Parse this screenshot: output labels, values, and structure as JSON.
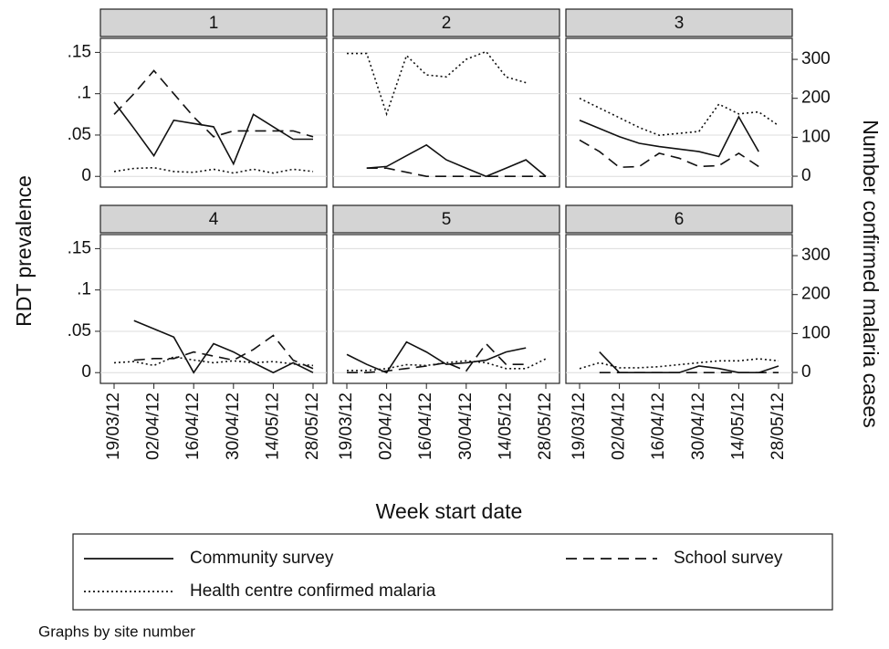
{
  "chart_data": {
    "type": "line",
    "ylabel": "RDT prevalence",
    "y2label": "Number confirmed malaria cases",
    "xlabel": "Week start date",
    "note": "Graphs by site number",
    "categories": [
      "19/03/12",
      null,
      "02/04/12",
      null,
      "16/04/12",
      null,
      "30/04/12",
      null,
      "14/05/12",
      null,
      "28/05/12"
    ],
    "ylim": [
      -0.013,
      0.167
    ],
    "yticks": [
      0,
      {
        "value": 0.05,
        "label": ".05"
      },
      {
        "value": 0.1,
        "label": ".1"
      },
      {
        "value": 0.15,
        "label": ".15"
      }
    ],
    "y2lim": [
      -28,
      354
    ],
    "y2ticks": [
      0,
      100,
      200,
      300
    ],
    "grid": true,
    "series": [
      {
        "name": "Community survey",
        "color": "#111111",
        "style": "solid",
        "axis": "y"
      },
      {
        "name": "School survey",
        "color": "#111111",
        "style": "dashed",
        "axis": "y"
      },
      {
        "name": "Health centre confirmed malaria",
        "color": "#111111",
        "style": "dotted",
        "axis": "y2"
      }
    ],
    "panels": [
      {
        "title": "1",
        "values": [
          [
            0.09,
            0.058,
            0.025,
            0.068,
            0.064,
            0.06,
            0.015,
            0.075,
            0.06,
            0.045,
            0.045
          ],
          [
            0.075,
            0.1,
            0.128,
            0.1,
            0.072,
            0.048,
            0.055,
            0.055,
            0.055,
            0.055,
            0.048
          ],
          [
            12,
            20,
            22,
            12,
            10,
            18,
            8,
            18,
            8,
            18,
            12
          ]
        ]
      },
      {
        "title": "2",
        "values": [
          [
            null,
            0.01,
            0.012,
            0.025,
            0.038,
            0.02,
            0.01,
            0,
            0.01,
            0.02,
            0
          ],
          [
            null,
            0.01,
            0.01,
            0.005,
            0,
            0,
            0,
            0,
            0,
            0,
            0
          ],
          [
            315,
            315,
            160,
            310,
            260,
            255,
            300,
            320,
            255,
            240,
            null
          ]
        ]
      },
      {
        "title": "3",
        "values": [
          [
            0.068,
            0.058,
            0.048,
            0.04,
            0.036,
            0.033,
            0.03,
            0.024,
            0.072,
            0.03,
            null
          ],
          [
            0.044,
            0.03,
            0.011,
            0.012,
            0.028,
            0.022,
            0.012,
            0.013,
            0.028,
            0.012,
            null
          ],
          [
            200,
            175,
            150,
            125,
            105,
            110,
            115,
            185,
            160,
            165,
            130
          ]
        ]
      },
      {
        "title": "4",
        "values": [
          [
            null,
            0.063,
            0.053,
            0.043,
            0,
            0.035,
            0.025,
            0.012,
            0,
            0.012,
            0
          ],
          [
            null,
            0.015,
            0.017,
            0.017,
            0.025,
            0.02,
            0.015,
            0.028,
            0.045,
            0.015,
            0.005
          ],
          [
            25,
            28,
            18,
            40,
            32,
            25,
            30,
            25,
            28,
            22,
            18
          ]
        ]
      },
      {
        "title": "5",
        "values": [
          [
            0.022,
            0.01,
            0,
            0.037,
            0.025,
            0.01,
            0.012,
            0.015,
            0.025,
            0.03,
            null
          ],
          [
            0,
            0,
            0.002,
            0.005,
            0.008,
            0.012,
            0.002,
            0.035,
            0.01,
            0.01,
            null
          ],
          [
            5,
            5,
            10,
            20,
            18,
            25,
            30,
            25,
            10,
            10,
            35
          ]
        ]
      },
      {
        "title": "6",
        "values": [
          [
            null,
            0.025,
            0,
            0,
            0,
            0,
            0.008,
            0.005,
            0,
            0,
            0.008
          ],
          [
            null,
            0,
            0,
            0,
            0,
            0,
            0,
            0,
            0,
            0,
            0
          ],
          [
            10,
            25,
            12,
            12,
            15,
            20,
            25,
            30,
            30,
            35,
            30
          ]
        ]
      }
    ]
  }
}
